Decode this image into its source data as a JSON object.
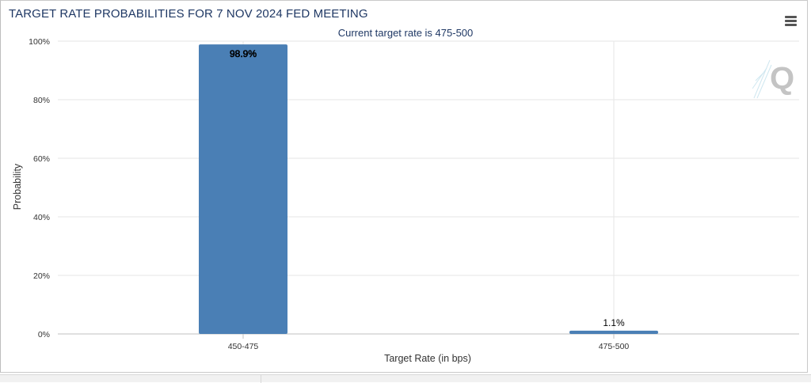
{
  "title": "TARGET RATE PROBABILITIES FOR 7 NOV 2024 FED MEETING",
  "subtitle": "Current target rate is 475-500",
  "menu_icon": "hamburger-menu-icon",
  "watermark_icon": "quikstrike-q-logo",
  "colors": {
    "bar": "#4a7fb5",
    "title": "#1f3864",
    "grid": "#e6e6e6"
  },
  "chart_data": {
    "type": "bar",
    "title": "TARGET RATE PROBABILITIES FOR 7 NOV 2024 FED MEETING",
    "subtitle": "Current target rate is 475-500",
    "xlabel": "Target Rate (in bps)",
    "ylabel": "Probability",
    "categories": [
      "450-475",
      "475-500"
    ],
    "values": [
      98.9,
      1.1
    ],
    "data_labels": [
      "98.9%",
      "1.1%"
    ],
    "ylim": [
      0,
      100
    ],
    "yticks": [
      0,
      20,
      40,
      60,
      80,
      100
    ],
    "ytick_labels": [
      "0%",
      "20%",
      "40%",
      "60%",
      "80%",
      "100%"
    ],
    "grid": true,
    "legend": false
  }
}
